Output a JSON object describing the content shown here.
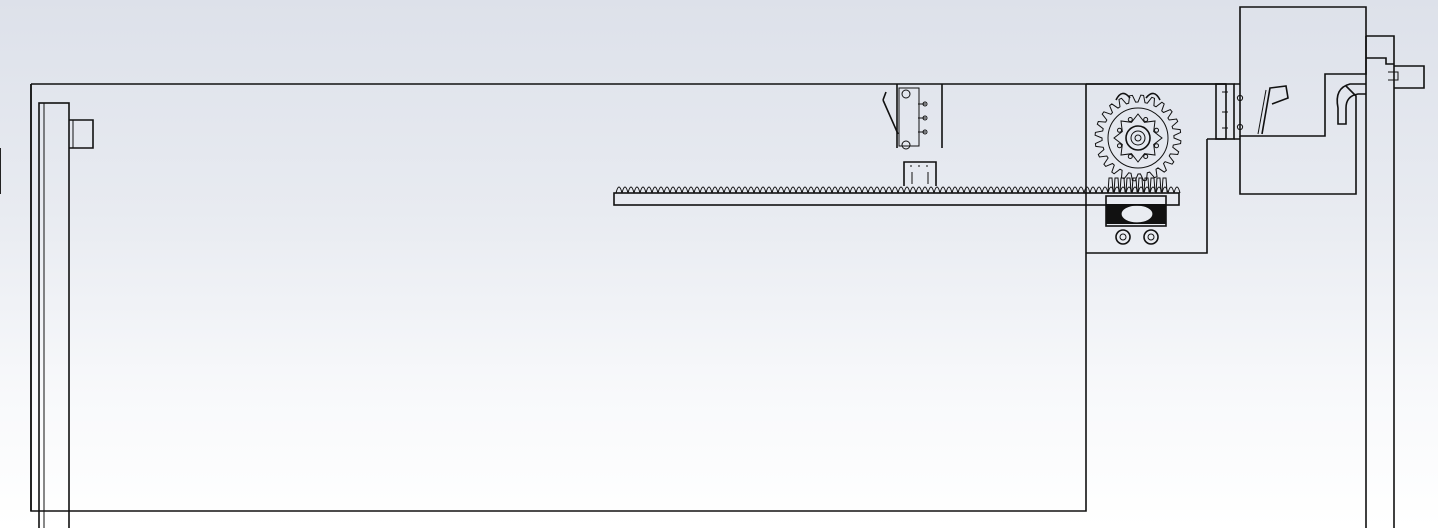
{
  "view": {
    "type": "cad-drawing-viewport",
    "background_top": "#dde1ea",
    "background_bottom": "#ffffff",
    "line_color": "#111111"
  },
  "parts": [
    {
      "name": "main-panel"
    },
    {
      "name": "left-post"
    },
    {
      "name": "left-knob"
    },
    {
      "name": "right-post"
    },
    {
      "name": "gear-rack"
    },
    {
      "name": "spur-gear"
    },
    {
      "name": "motor-mount-plate"
    },
    {
      "name": "limit-switch-top"
    },
    {
      "name": "limit-switch-right"
    },
    {
      "name": "upper-right-bracket"
    }
  ]
}
